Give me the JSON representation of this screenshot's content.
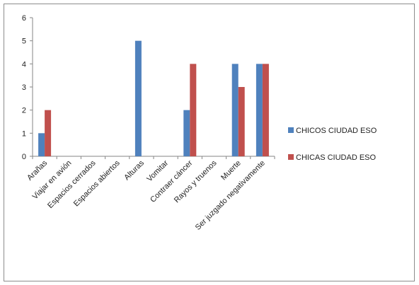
{
  "chart_data": {
    "type": "bar",
    "categories": [
      "Arañas",
      "Viajar en avión",
      "Espacios cerrados",
      "Espacios abiertos",
      "Alturas",
      "Vomitar",
      "Contraer cáncer",
      "Rayos y truenos",
      "Muerte",
      "Ser juzgado negativamente"
    ],
    "series": [
      {
        "name": "CHICOS CIUDAD ESO",
        "color": "#4f81bd",
        "values": [
          1,
          0,
          0,
          0,
          5,
          0,
          2,
          0,
          4,
          4
        ]
      },
      {
        "name": "CHICAS CIUDAD ESO",
        "color": "#c0504d",
        "values": [
          2,
          0,
          0,
          0,
          0,
          0,
          4,
          0,
          3,
          4
        ]
      }
    ],
    "ylim": [
      0,
      6
    ],
    "yticks": [
      0,
      1,
      2,
      3,
      4,
      5,
      6
    ],
    "grid": false,
    "legend_position": "right"
  }
}
